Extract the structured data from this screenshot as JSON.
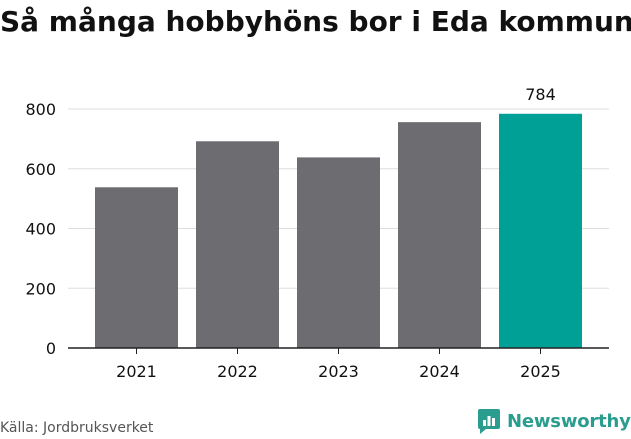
{
  "chart_data": {
    "type": "bar",
    "title": "Så många hobbyhöns bor i Eda kommun",
    "categories": [
      "2021",
      "2022",
      "2023",
      "2024",
      "2025"
    ],
    "values": [
      538,
      692,
      638,
      756,
      784
    ],
    "ylim": [
      0,
      800
    ],
    "yticks": [
      "0",
      "200",
      "400",
      "600",
      "800"
    ],
    "ytick_values": [
      0,
      200,
      400,
      600,
      800
    ],
    "grid": true,
    "data_labels": [
      null,
      null,
      null,
      null,
      "784"
    ],
    "highlight_index": 4,
    "colors": {
      "bar": "#6d6c70",
      "highlight": "#00a096",
      "grid": "#dddddd",
      "axis": "#222222"
    }
  },
  "footer": {
    "source": "Källa: Jordbruksverket",
    "brand": "Newsworthy",
    "brand_icon": "newsworthy-logo-icon",
    "brand_color": "#2a9d8f"
  }
}
